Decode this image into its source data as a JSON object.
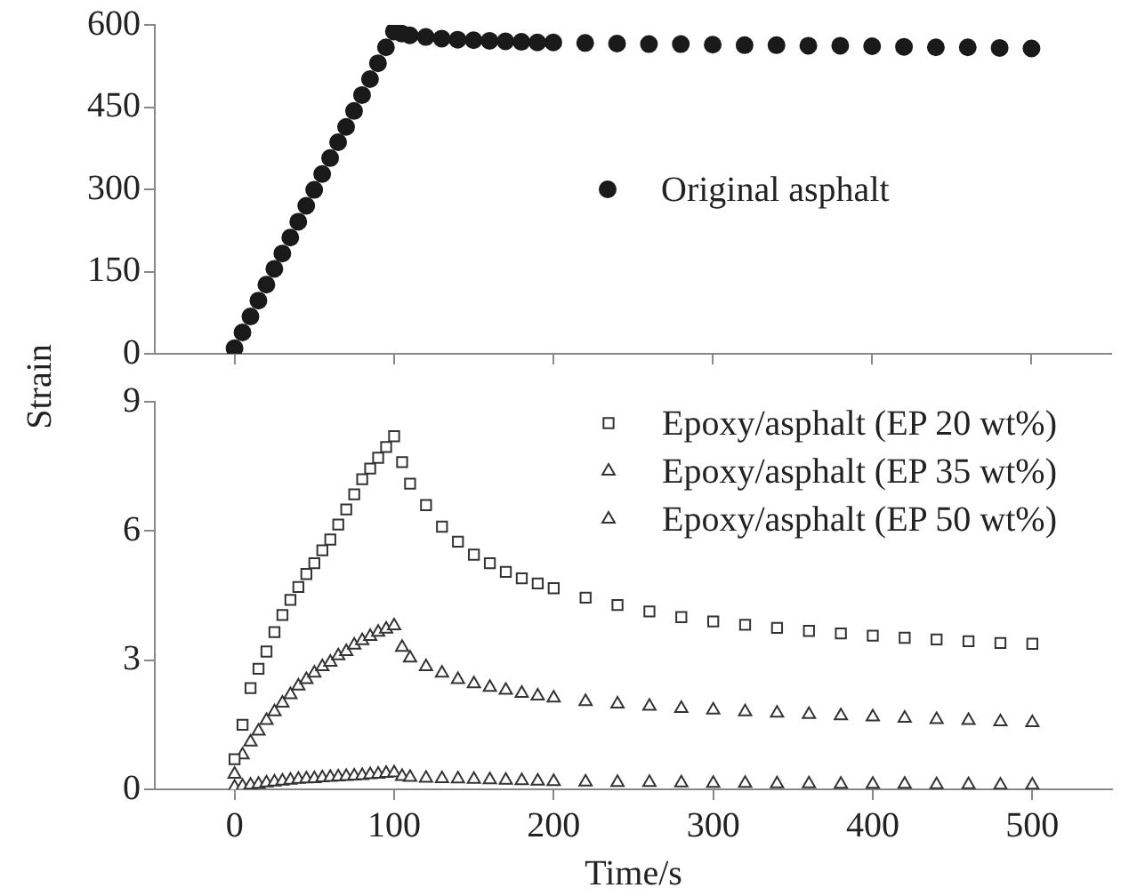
{
  "chart_data": [
    {
      "type": "scatter",
      "ylabel": "Strain",
      "legend": "center right",
      "marker": "circle",
      "tick_labels": "y",
      "xlim": [
        -50,
        550
      ],
      "ylim": [
        0,
        600
      ],
      "yticks": [
        0,
        150,
        300,
        450,
        600
      ],
      "xticks": [
        {
          "value": 0,
          "label": null
        },
        {
          "value": 100,
          "label": null
        },
        {
          "value": 200,
          "label": null
        },
        {
          "value": 300,
          "label": null
        },
        {
          "value": 400,
          "label": null
        },
        {
          "value": 500,
          "label": null
        }
      ],
      "x": [
        0,
        5,
        10,
        15,
        20,
        25,
        30,
        35,
        40,
        45,
        50,
        55,
        60,
        65,
        70,
        75,
        80,
        85,
        90,
        95,
        100,
        105,
        110,
        120,
        130,
        140,
        150,
        160,
        170,
        180,
        190,
        200,
        220,
        240,
        260,
        280,
        300,
        320,
        340,
        360,
        380,
        400,
        420,
        440,
        460,
        480,
        500
      ],
      "series": [
        {
          "name": "Original asphalt",
          "color": "#1a1a1a",
          "values": [
            10,
            39,
            68,
            97,
            126,
            155,
            183,
            212,
            241,
            270,
            299,
            328,
            357,
            386,
            414,
            443,
            472,
            501,
            530,
            559,
            588,
            584,
            581,
            578,
            575,
            573,
            572,
            571,
            570,
            569,
            568,
            568,
            567,
            566,
            565,
            565,
            564,
            563,
            563,
            562,
            562,
            561,
            560,
            559,
            559,
            558,
            557
          ]
        }
      ]
    },
    {
      "type": "scatter",
      "xlabel": "Time/s",
      "legend": "top right",
      "xlim": [
        -50,
        550
      ],
      "ylim": [
        0,
        9
      ],
      "xticks": [
        0,
        100,
        200,
        300,
        400,
        500
      ],
      "yticks": [
        0,
        3,
        6,
        9
      ],
      "x": [
        0,
        5,
        10,
        15,
        20,
        25,
        30,
        35,
        40,
        45,
        50,
        55,
        60,
        65,
        70,
        75,
        80,
        85,
        90,
        95,
        100,
        105,
        110,
        120,
        130,
        140,
        150,
        160,
        170,
        180,
        190,
        200,
        220,
        240,
        260,
        280,
        300,
        320,
        340,
        360,
        380,
        400,
        420,
        440,
        460,
        480,
        500
      ],
      "series": [
        {
          "name": "Epoxy/asphalt (EP 20 wt%)",
          "color": "#333333",
          "marker": "square",
          "values": [
            0.7,
            1.5,
            2.35,
            2.8,
            3.2,
            3.65,
            4.05,
            4.4,
            4.7,
            5.0,
            5.25,
            5.55,
            5.8,
            6.15,
            6.5,
            6.85,
            7.2,
            7.45,
            7.7,
            7.95,
            8.2,
            7.6,
            7.1,
            6.6,
            6.1,
            5.75,
            5.45,
            5.25,
            5.05,
            4.9,
            4.78,
            4.67,
            4.45,
            4.28,
            4.13,
            4.0,
            3.9,
            3.82,
            3.75,
            3.68,
            3.62,
            3.57,
            3.52,
            3.48,
            3.44,
            3.4,
            3.38
          ]
        },
        {
          "name": "Epoxy/asphalt (EP 35 wt%)",
          "color": "#333333",
          "marker": "triangle",
          "values": [
            0.35,
            0.8,
            1.1,
            1.35,
            1.6,
            1.8,
            2.0,
            2.2,
            2.4,
            2.55,
            2.7,
            2.85,
            2.95,
            3.1,
            3.2,
            3.35,
            3.45,
            3.55,
            3.65,
            3.72,
            3.8,
            3.3,
            3.05,
            2.85,
            2.7,
            2.55,
            2.45,
            2.37,
            2.3,
            2.23,
            2.17,
            2.12,
            2.04,
            1.98,
            1.93,
            1.88,
            1.84,
            1.8,
            1.77,
            1.74,
            1.71,
            1.68,
            1.65,
            1.62,
            1.6,
            1.57,
            1.55
          ]
        },
        {
          "name": "Epoxy/asphalt (EP 50 wt%)",
          "color": "#333333",
          "marker": "triangle",
          "values": [
            0.05,
            0.07,
            0.1,
            0.12,
            0.15,
            0.17,
            0.19,
            0.21,
            0.23,
            0.24,
            0.25,
            0.27,
            0.28,
            0.29,
            0.3,
            0.31,
            0.32,
            0.34,
            0.35,
            0.37,
            0.38,
            0.3,
            0.28,
            0.26,
            0.25,
            0.24,
            0.23,
            0.22,
            0.21,
            0.2,
            0.19,
            0.18,
            0.17,
            0.16,
            0.16,
            0.15,
            0.14,
            0.14,
            0.13,
            0.13,
            0.12,
            0.12,
            0.12,
            0.11,
            0.11,
            0.1,
            0.1
          ]
        }
      ]
    }
  ]
}
